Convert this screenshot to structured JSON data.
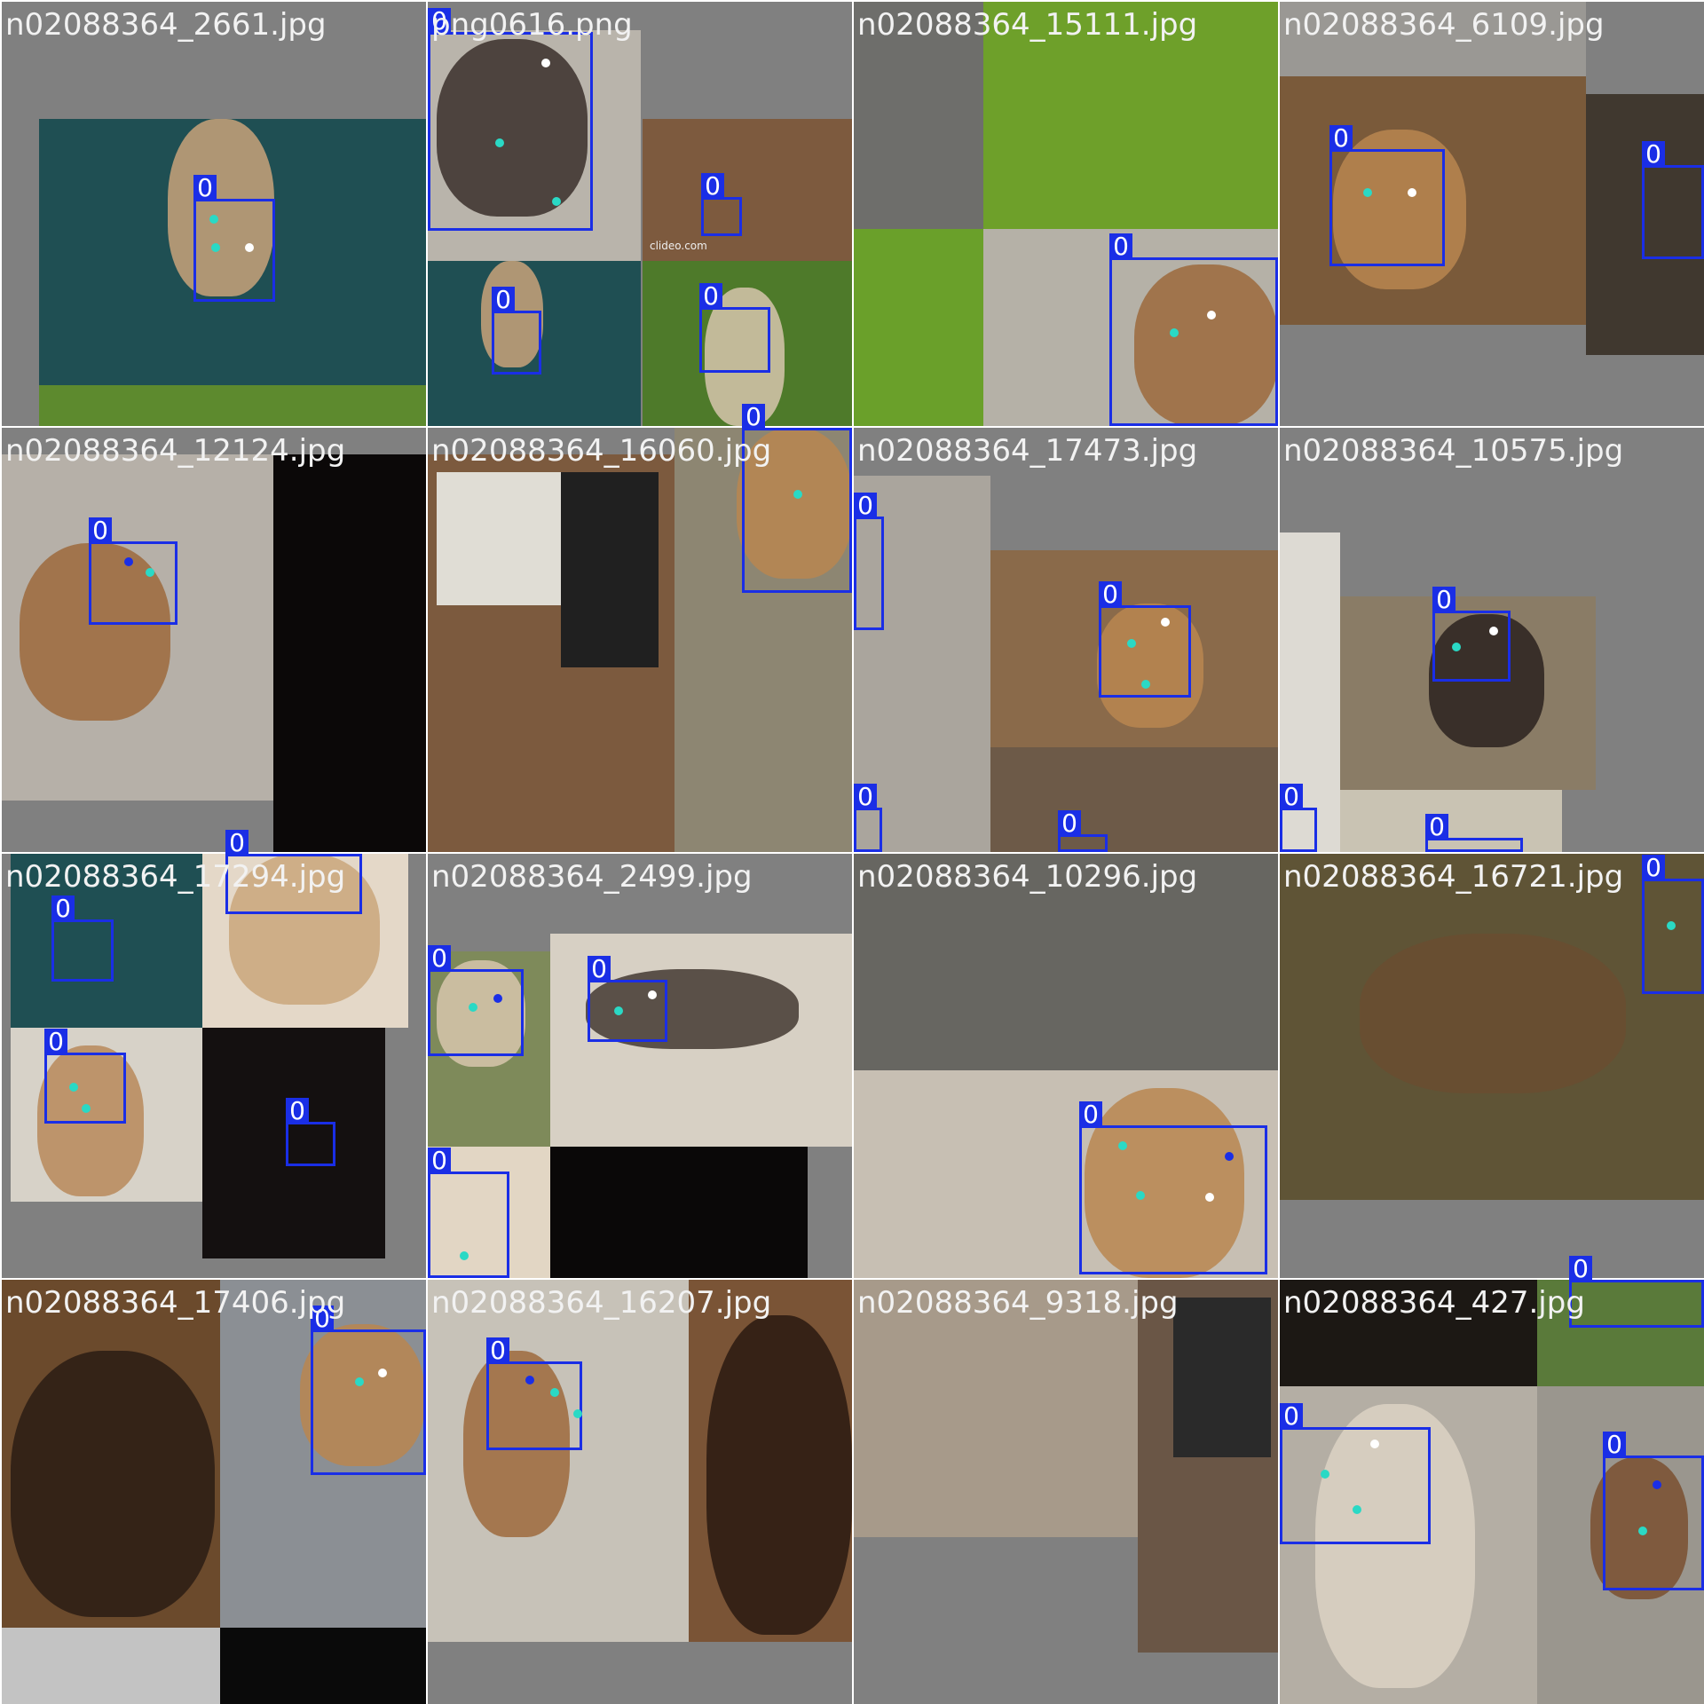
{
  "tiles": [
    {
      "filename": "n02088364_2661.jpg",
      "boxes": [
        {
          "label": "0"
        }
      ]
    },
    {
      "filename": "png0616.png",
      "boxes": [
        {
          "label": "0"
        },
        {
          "label": "0"
        },
        {
          "label": "0"
        },
        {
          "label": "0"
        }
      ],
      "watermark": "clideo.com"
    },
    {
      "filename": "n02088364_15111.jpg",
      "boxes": [
        {
          "label": "0"
        }
      ]
    },
    {
      "filename": "n02088364_6109.jpg",
      "boxes": [
        {
          "label": "0"
        },
        {
          "label": "0"
        }
      ]
    },
    {
      "filename": "n02088364_12124.jpg",
      "boxes": [
        {
          "label": "0"
        }
      ]
    },
    {
      "filename": "n02088364_16060.jpg",
      "boxes": [
        {
          "label": "0"
        }
      ]
    },
    {
      "filename": "n02088364_17473.jpg",
      "boxes": [
        {
          "label": "0"
        },
        {
          "label": "0"
        },
        {
          "label": "0"
        },
        {
          "label": "0"
        }
      ]
    },
    {
      "filename": "n02088364_10575.jpg",
      "boxes": [
        {
          "label": "0"
        },
        {
          "label": "0"
        },
        {
          "label": "0"
        }
      ]
    },
    {
      "filename": "n02088364_17294.jpg",
      "boxes": [
        {
          "label": "0"
        },
        {
          "label": "0"
        },
        {
          "label": "0"
        },
        {
          "label": "0"
        }
      ]
    },
    {
      "filename": "n02088364_2499.jpg",
      "boxes": [
        {
          "label": "0"
        },
        {
          "label": "0"
        },
        {
          "label": "0"
        }
      ]
    },
    {
      "filename": "n02088364_10296.jpg",
      "boxes": [
        {
          "label": "0"
        }
      ]
    },
    {
      "filename": "n02088364_16721.jpg",
      "boxes": [
        {
          "label": "0"
        }
      ]
    },
    {
      "filename": "n02088364_17406.jpg",
      "boxes": [
        {
          "label": "0"
        }
      ]
    },
    {
      "filename": "n02088364_16207.jpg",
      "boxes": [
        {
          "label": "0"
        }
      ]
    },
    {
      "filename": "n02088364_9318.jpg",
      "boxes": []
    },
    {
      "filename": "n02088364_427.jpg",
      "boxes": [
        {
          "label": "0"
        },
        {
          "label": "0"
        },
        {
          "label": "0"
        }
      ]
    }
  ]
}
